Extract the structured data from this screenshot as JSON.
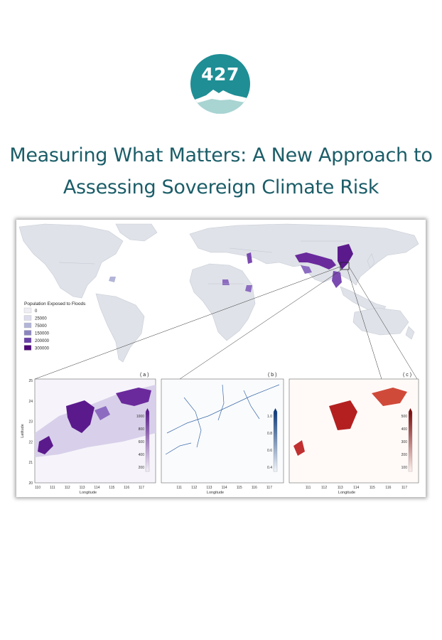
{
  "logo": {
    "text": "427"
  },
  "title": {
    "line1": "Measuring What Matters: A New Approach to",
    "line2": "Assessing Sovereign Climate Risk"
  },
  "map": {
    "legend": {
      "title": "Population Exposed to Floods",
      "items": [
        {
          "label": "0",
          "color": "#eeeef4"
        },
        {
          "label": "25000",
          "color": "#dcdcec"
        },
        {
          "label": "75000",
          "color": "#b3b5d8"
        },
        {
          "label": "150000",
          "color": "#8c86be"
        },
        {
          "label": "200000",
          "color": "#6a43a8"
        },
        {
          "label": "300000",
          "color": "#4f0a78"
        }
      ]
    },
    "panels": [
      {
        "tag": "( a )",
        "colorbar": [
          "1000",
          "800",
          "600",
          "400",
          "200"
        ],
        "colors": [
          "#f3eff8",
          "#5a1a8c"
        ]
      },
      {
        "tag": "( b )",
        "colorbar": [
          "1.0",
          "0.8",
          "0.6",
          "0.4"
        ],
        "colors": [
          "#f3f6fb",
          "#0c3a7a"
        ]
      },
      {
        "tag": "( c )",
        "colorbar": [
          "500",
          "400",
          "300",
          "200",
          "100"
        ],
        "colors": [
          "#fdf1ec",
          "#7c0a0a"
        ]
      }
    ],
    "latitude_label": "Latitude",
    "longitude_label": "Longitude",
    "lat_ticks": [
      "25",
      "24",
      "23",
      "22",
      "21",
      "20"
    ],
    "lon_ticks_a": [
      "110",
      "111",
      "112",
      "113",
      "114",
      "115",
      "116",
      "117"
    ],
    "lon_ticks": [
      "111",
      "112",
      "113",
      "114",
      "115",
      "116",
      "117"
    ]
  }
}
